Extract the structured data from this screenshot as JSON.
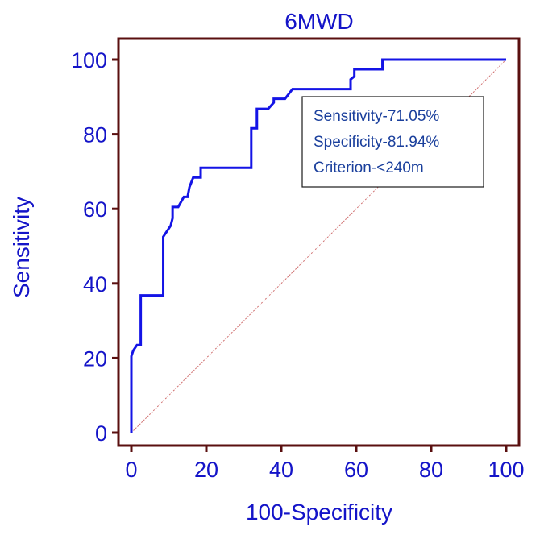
{
  "chart_data": {
    "type": "line",
    "title": "6MWD",
    "xlabel": "100-Specificity",
    "ylabel": "Sensitivity",
    "xlim": [
      0,
      100
    ],
    "ylim": [
      0,
      100
    ],
    "xticks": [
      0,
      20,
      40,
      60,
      80,
      100
    ],
    "yticks": [
      0,
      20,
      40,
      60,
      80,
      100
    ],
    "series": [
      {
        "name": "ROC curve",
        "color": "#1414e6",
        "x": [
          0,
          0,
          0.5,
          1.5,
          2.5,
          2.5,
          8.5,
          8.5,
          10.5,
          11,
          11,
          12.5,
          14,
          15,
          15.5,
          16.5,
          17.5,
          18.5,
          18.5,
          32,
          32,
          33.5,
          33.5,
          36.5,
          38,
          38,
          41,
          43,
          43,
          58.5,
          58.5,
          59.5,
          59.5,
          67,
          67,
          100
        ],
        "y": [
          0,
          20.5,
          22,
          23.5,
          23.5,
          36.8,
          36.8,
          52.5,
          55.5,
          57.5,
          60.5,
          60.5,
          63.2,
          63.2,
          65.8,
          68.4,
          68.4,
          68.4,
          71,
          71,
          81.6,
          81.6,
          86.8,
          86.8,
          88.5,
          89.5,
          89.5,
          92.1,
          92.1,
          92.1,
          94.7,
          95.5,
          97.4,
          97.4,
          100,
          100
        ]
      },
      {
        "name": "Reference line",
        "color": "#d07070",
        "x": [
          0,
          100
        ],
        "y": [
          0,
          100
        ]
      }
    ],
    "annotations": [
      "Sensitivity-71.05%",
      "Specificity-81.94%",
      "Criterion-<240m"
    ]
  },
  "colors": {
    "frame": "#5a0f0f",
    "text": "#1414c8",
    "curve": "#1414e6",
    "diagonal": "#d07070",
    "annotation_text": "#1a3f9c"
  }
}
